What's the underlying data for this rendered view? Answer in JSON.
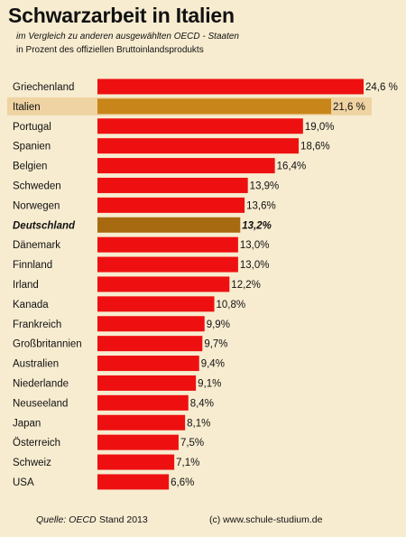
{
  "title": "Schwarzarbeit in Italien",
  "subtitle": "im Vergleich zu anderen ausgewählten OECD - Staaten",
  "subtitle2": "in Prozent des offiziellen Bruttoinlandsprodukts",
  "footer": {
    "source": "Quelle: OECD",
    "stand": "Stand 2013",
    "copyright": "(c) www.schule-studium.de"
  },
  "colors": {
    "background": "#f7ecd0",
    "bar": "#ee1010",
    "highlight_italy": "#c8861a",
    "highlight_germany": "#a86a10",
    "highlight_band": "#efd3a2"
  },
  "chart_data": {
    "type": "bar",
    "orientation": "horizontal",
    "xlim": [
      0,
      24.6
    ],
    "grid": false,
    "categories": [
      "Griechenland",
      "Italien",
      "Portugal",
      "Spanien",
      "Belgien",
      "Schweden",
      "Norwegen",
      "Deutschland",
      "Dänemark",
      "Finnland",
      "Irland",
      "Kanada",
      "Frankreich",
      "Großbritannien",
      "Australien",
      "Niederlande",
      "Neuseeland",
      "Japan",
      "Österreich",
      "Schweiz",
      "USA"
    ],
    "values": [
      24.6,
      21.6,
      19.0,
      18.6,
      16.4,
      13.9,
      13.6,
      13.2,
      13.0,
      13.0,
      12.2,
      10.8,
      9.9,
      9.7,
      9.4,
      9.1,
      8.4,
      8.1,
      7.5,
      7.1,
      6.6
    ],
    "value_labels": [
      "24,6 %",
      "21,6 %",
      "19,0%",
      "18,6%",
      "16,4%",
      "13,9%",
      "13,6%",
      "13,2%",
      "13,0%",
      "13,0%",
      "12,2%",
      "10,8%",
      "9,9%",
      "9,7%",
      "9,4%",
      "9,1%",
      "8,4%",
      "8,1%",
      "7,5%",
      "7,1%",
      "6,6%"
    ],
    "highlight": [
      "Italien",
      "Deutschland"
    ]
  }
}
